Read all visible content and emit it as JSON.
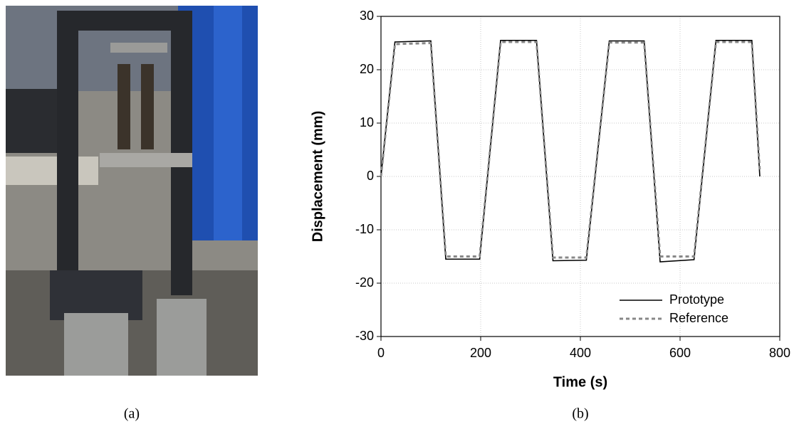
{
  "chart_data": {
    "type": "line",
    "x_label": "Time (s)",
    "y_label": "Displacement (mm)",
    "xlim": [
      0,
      800
    ],
    "ylim": [
      -30,
      30
    ],
    "xticks": [
      0,
      200,
      400,
      600,
      800
    ],
    "yticks": [
      -30,
      -20,
      -10,
      0,
      10,
      20,
      30
    ],
    "grid": true,
    "legend": "lower right",
    "series": [
      {
        "name": "Prototype",
        "color": "#000000",
        "dash": "solid",
        "x": [
          0,
          28,
          100,
          130,
          198,
          240,
          312,
          345,
          412,
          458,
          528,
          560,
          628,
          672,
          744,
          760
        ],
        "values": [
          0,
          25.2,
          25.4,
          -15.5,
          -15.5,
          25.5,
          25.5,
          -15.8,
          -15.7,
          25.4,
          25.4,
          -16,
          -15.6,
          25.5,
          25.5,
          0
        ]
      },
      {
        "name": "Reference",
        "color": "#888888",
        "dash": "dashed",
        "x": [
          0,
          28,
          100,
          130,
          198,
          240,
          312,
          345,
          412,
          458,
          528,
          560,
          628,
          672,
          744,
          760
        ],
        "values": [
          0,
          24.8,
          25,
          -15,
          -15,
          25.2,
          25.2,
          -15.2,
          -15.2,
          25.1,
          25.1,
          -15,
          -15,
          25.2,
          25.2,
          1
        ]
      }
    ]
  },
  "captions": [
    "(a)",
    "(b)"
  ]
}
